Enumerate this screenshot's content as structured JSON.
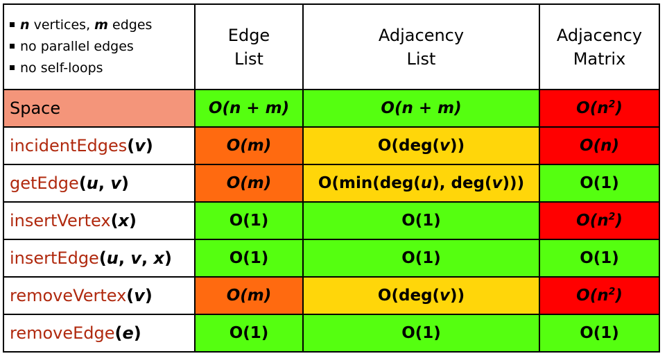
{
  "notes": [
    {
      "em": "n",
      "text": " vertices, "
    },
    {
      "em": "m",
      "text": " edges"
    },
    {
      "plain": "no parallel edges"
    },
    {
      "plain": "no self-loops"
    }
  ],
  "headers": {
    "edge_list": [
      "Edge",
      "List"
    ],
    "adjacency_list": [
      "Adjacency",
      "List"
    ],
    "adjacency_matrix": [
      "Adjacency",
      "Matrix"
    ]
  },
  "rows": [
    {
      "op": "Space",
      "arg": "",
      "edge": "O(n + m)",
      "adj": "O(n + m)",
      "mat": "O(n2)"
    },
    {
      "op": "incidentEdges",
      "arg": "(v)",
      "edge": "O(m)",
      "adj": "O(deg(v))",
      "mat": "O(n)"
    },
    {
      "op": "getEdge",
      "arg": "(u, v)",
      "edge": "O(m)",
      "adj": "O(min(deg(u), deg(v)))",
      "mat": "O(1)"
    },
    {
      "op": "insertVertex",
      "arg": "(x)",
      "edge": "O(1)",
      "adj": "O(1)",
      "mat": "O(n2)"
    },
    {
      "op": "insertEdge",
      "arg": "(u, v, x)",
      "edge": "O(1)",
      "adj": "O(1)",
      "mat": "O(1)"
    },
    {
      "op": "removeVertex",
      "arg": "(v)",
      "edge": "O(m)",
      "adj": "O(deg(v))",
      "mat": "O(n2)"
    },
    {
      "op": "removeEdge",
      "arg": "(e)",
      "edge": "O(1)",
      "adj": "O(1)",
      "mat": "O(1)"
    }
  ],
  "colors": {
    "green": "#55ff10",
    "orange": "#ff6a10",
    "yellow": "#ffd60a",
    "red": "#ff0000",
    "space_header": "#f4957a",
    "op_text": "#b0290e"
  }
}
